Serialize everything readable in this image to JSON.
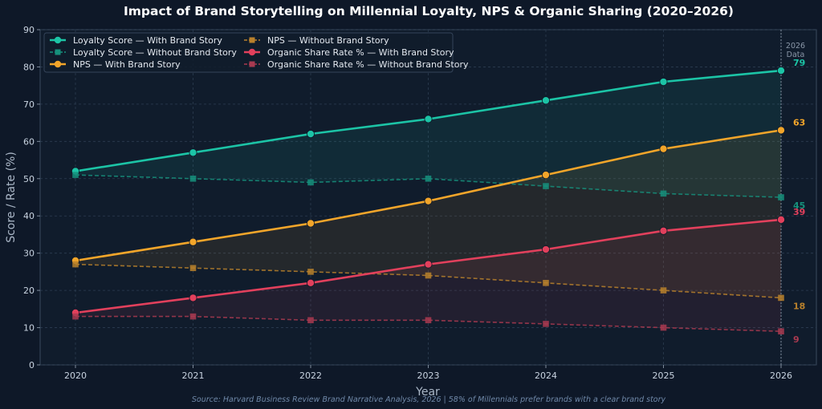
{
  "chart_data": {
    "type": "line",
    "title": "Impact of Brand Storytelling on Millennial Loyalty, NPS & Organic Sharing (2020–2026)",
    "xlabel": "Year",
    "ylabel": "Score / Rate (%)",
    "x": [
      "2020",
      "2021",
      "2022",
      "2023",
      "2024",
      "2025",
      "2026"
    ],
    "ylim": [
      0,
      90
    ],
    "yticks": [
      "0",
      "10",
      "20",
      "30",
      "40",
      "50",
      "60",
      "70",
      "80",
      "90"
    ],
    "grid": true,
    "legend_position": "top-left",
    "series": [
      {
        "name": "Loyalty Score — With Brand Story",
        "values": [
          52,
          57,
          62,
          66,
          71,
          76,
          79
        ],
        "color": "#1cc4a6",
        "style": "solid",
        "marker": "circle",
        "end_label": "79"
      },
      {
        "name": "Loyalty Score — Without Brand Story",
        "values": [
          51,
          50,
          49,
          50,
          48,
          46,
          45
        ],
        "color": "#16917c",
        "style": "dashed",
        "marker": "square",
        "end_label": "45"
      },
      {
        "name": "NPS — With Brand Story",
        "values": [
          28,
          33,
          38,
          44,
          51,
          58,
          63
        ],
        "color": "#f2a52a",
        "style": "solid",
        "marker": "circle",
        "end_label": "63"
      },
      {
        "name": "NPS — Without Brand Story",
        "values": [
          27,
          26,
          25,
          24,
          22,
          20,
          18
        ],
        "color": "#b9812c",
        "style": "dashed",
        "marker": "square",
        "end_label": "18"
      },
      {
        "name": "Organic Share Rate % — With Brand Story",
        "values": [
          14,
          18,
          22,
          27,
          31,
          36,
          39
        ],
        "color": "#e2405c",
        "style": "solid",
        "marker": "circle",
        "end_label": "39"
      },
      {
        "name": "Organic Share Rate % — Without Brand Story",
        "values": [
          13,
          13,
          12,
          12,
          11,
          10,
          9
        ],
        "color": "#a93a50",
        "style": "dashed",
        "marker": "square",
        "end_label": "9"
      }
    ],
    "annotations": {
      "vline_label": "2026\nData"
    },
    "source": "Source: Harvard Business Review Brand Narrative Analysis, 2026  |  58% of Millennials prefer brands with a clear brand story"
  }
}
